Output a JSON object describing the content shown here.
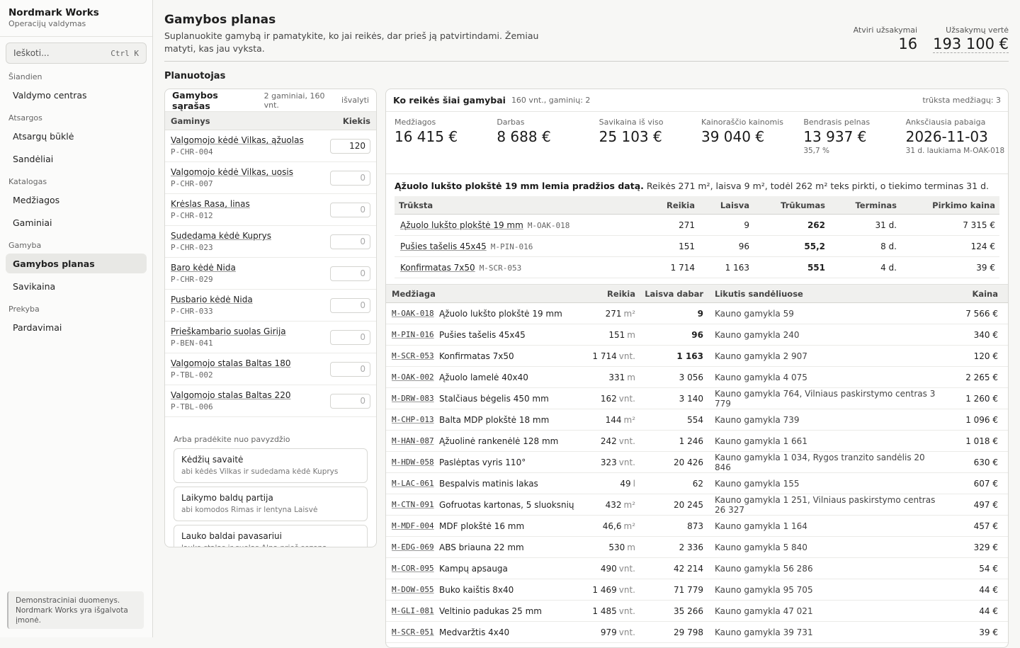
{
  "app": {
    "title": "Nordmark Works",
    "subtitle": "Operacijų valdymas"
  },
  "search": {
    "placeholder": "Ieškoti...",
    "shortcut": "Ctrl K"
  },
  "nav": [
    {
      "section": "Šiandien",
      "items": [
        "Valdymo centras"
      ]
    },
    {
      "section": "Atsargos",
      "items": [
        "Atsargų būklė",
        "Sandėliai"
      ]
    },
    {
      "section": "Katalogas",
      "items": [
        "Medžiagos",
        "Gaminiai"
      ]
    },
    {
      "section": "Gamyba",
      "items": [
        "Gamybos planas",
        "Savikaina"
      ]
    },
    {
      "section": "Prekyba",
      "items": [
        "Pardavimai"
      ]
    }
  ],
  "active_nav": "Gamybos planas",
  "note": "Demonstraciniai duomenys. Nordmark Works yra išgalvota įmonė.",
  "header": {
    "title": "Gamybos planas",
    "subtitle": "Suplanuokite gamybą ir pamatykite, ko jai reikės, dar prieš ją patvirtindami. Žemiau matyti, kas jau vyksta.",
    "stats": [
      {
        "label": "Atviri užsakymai",
        "value": "16"
      },
      {
        "label": "Užsakymų vertė",
        "value": "193 100 €"
      }
    ]
  },
  "section_title": "Planuotojas",
  "list": {
    "title": "Gamybos sąrašas",
    "meta": "2 gaminiai, 160 vnt.",
    "clear": "išvalyti",
    "col_product": "Gaminys",
    "col_qty": "Kiekis",
    "rows": [
      {
        "name": "Valgomojo kėdė Vilkas, ąžuolas",
        "code": "P-CHR-004",
        "qty": "120"
      },
      {
        "name": "Valgomojo kėdė Vilkas, uosis",
        "code": "P-CHR-007",
        "qty": "0"
      },
      {
        "name": "Krėslas Rasa, linas",
        "code": "P-CHR-012",
        "qty": "0"
      },
      {
        "name": "Sudedama kėdė Kuprys",
        "code": "P-CHR-023",
        "qty": "0"
      },
      {
        "name": "Baro kėdė Nida",
        "code": "P-CHR-029",
        "qty": "0"
      },
      {
        "name": "Pusbario kėdė Nida",
        "code": "P-CHR-033",
        "qty": "0"
      },
      {
        "name": "Prieškambario suolas Girija",
        "code": "P-BEN-041",
        "qty": "0"
      },
      {
        "name": "Valgomojo stalas Baltas 180",
        "code": "P-TBL-002",
        "qty": "0"
      },
      {
        "name": "Valgomojo stalas Baltas 220",
        "code": "P-TBL-006",
        "qty": "0"
      }
    ],
    "examples_heading": "Arba pradėkite nuo pavyzdžio",
    "examples": [
      {
        "title": "Kėdžių savaitė",
        "desc": "abi kėdės Vilkas ir sudedama kėdė Kuprys"
      },
      {
        "title": "Laikymo baldų partija",
        "desc": "abi komodos Rimas ir lentyna Laisvė"
      },
      {
        "title": "Lauko baldai pavasariui",
        "desc": "lauko stalas ir suolas Alna prieš sezoną"
      }
    ]
  },
  "need": {
    "title": "Ko reikės šiai gamybai",
    "meta": "160 vnt., gaminių: 2",
    "short": "trūksta medžiagų: 3",
    "kpis": [
      {
        "label": "Medžiagos",
        "value": "16 415 €",
        "sub": ""
      },
      {
        "label": "Darbas",
        "value": "8 688 €",
        "sub": ""
      },
      {
        "label": "Savikaina iš viso",
        "value": "25 103 €",
        "sub": ""
      },
      {
        "label": "Kainoraščio kainomis",
        "value": "39 040 €",
        "sub": ""
      },
      {
        "label": "Bendrasis pelnas",
        "value": "13 937 €",
        "sub": "35,7 %"
      },
      {
        "label": "Anksčiausia pabaiga",
        "value": "2026-11-03",
        "sub": "31 d. laukiama M-OAK-018"
      }
    ],
    "limit_bold": "Ąžuolo lukšto plokštė 19 mm lemia pradžios datą.",
    "limit_text": " Reikės 271 m², laisva 9 m², todėl 262 m² teks pirkti, o tiekimo terminas 31 d.",
    "short_cols": [
      "Trūksta",
      "Reikia",
      "Laisva",
      "Trūkumas",
      "Terminas",
      "Pirkimo kaina"
    ],
    "short_rows": [
      {
        "name": "Ąžuolo lukšto plokštė 19 mm",
        "code": "M-OAK-018",
        "need": "271",
        "free": "9",
        "gap": "262",
        "lead": "31 d.",
        "cost": "7 315 €"
      },
      {
        "name": "Pušies tašelis 45x45",
        "code": "M-PIN-016",
        "need": "151",
        "free": "96",
        "gap": "55,2",
        "lead": "8 d.",
        "cost": "124 €"
      },
      {
        "name": "Konfirmatas 7x50",
        "code": "M-SCR-053",
        "need": "1 714",
        "free": "1 163",
        "gap": "551",
        "lead": "4 d.",
        "cost": "39 €"
      }
    ],
    "mat_cols": [
      "Medžiaga",
      "Reikia",
      "Laisva dabar",
      "Likutis sandėliuose",
      "Kaina"
    ],
    "mat_rows": [
      {
        "code": "M-OAK-018",
        "name": "Ąžuolo lukšto plokštė 19 mm",
        "need": "271",
        "unit": "m²",
        "free": "9",
        "stock": "Kauno gamykla 59",
        "price": "7 566 €",
        "bold": true
      },
      {
        "code": "M-PIN-016",
        "name": "Pušies tašelis 45x45",
        "need": "151",
        "unit": "m",
        "free": "96",
        "stock": "Kauno gamykla 240",
        "price": "340 €",
        "bold": true
      },
      {
        "code": "M-SCR-053",
        "name": "Konfirmatas 7x50",
        "need": "1 714",
        "unit": "vnt.",
        "free": "1 163",
        "stock": "Kauno gamykla 2 907",
        "price": "120 €",
        "bold": true
      },
      {
        "code": "M-OAK-002",
        "name": "Ąžuolo lamelė 40x40",
        "need": "331",
        "unit": "m",
        "free": "3 056",
        "stock": "Kauno gamykla 4 075",
        "price": "2 265 €",
        "bold": false
      },
      {
        "code": "M-DRW-083",
        "name": "Stalčiaus bėgelis 450 mm",
        "need": "162",
        "unit": "vnt.",
        "free": "3 140",
        "stock": "Kauno gamykla 764, Vilniaus paskirstymo centras 3 779",
        "price": "1 260 €",
        "bold": false
      },
      {
        "code": "M-CHP-013",
        "name": "Balta MDP plokštė 18 mm",
        "need": "144",
        "unit": "m²",
        "free": "554",
        "stock": "Kauno gamykla 739",
        "price": "1 096 €",
        "bold": false
      },
      {
        "code": "M-HAN-087",
        "name": "Ąžuolinė rankenėlė 128 mm",
        "need": "242",
        "unit": "vnt.",
        "free": "1 246",
        "stock": "Kauno gamykla 1 661",
        "price": "1 018 €",
        "bold": false
      },
      {
        "code": "M-HDW-058",
        "name": "Paslėptas vyris 110°",
        "need": "323",
        "unit": "vnt.",
        "free": "20 426",
        "stock": "Kauno gamykla 1 034, Rygos tranzito sandėlis 20 846",
        "price": "630 €",
        "bold": false
      },
      {
        "code": "M-LAC-061",
        "name": "Bespalvis matinis lakas",
        "need": "49",
        "unit": "l",
        "free": "62",
        "stock": "Kauno gamykla 155",
        "price": "607 €",
        "bold": false
      },
      {
        "code": "M-CTN-091",
        "name": "Gofruotas kartonas, 5 sluoksnių",
        "need": "432",
        "unit": "m²",
        "free": "20 245",
        "stock": "Kauno gamykla 1 251, Vilniaus paskirstymo centras 26 327",
        "price": "497 €",
        "bold": false
      },
      {
        "code": "M-MDF-004",
        "name": "MDF plokštė 16 mm",
        "need": "46,6",
        "unit": "m²",
        "free": "873",
        "stock": "Kauno gamykla 1 164",
        "price": "457 €",
        "bold": false
      },
      {
        "code": "M-EDG-069",
        "name": "ABS briauna 22 mm",
        "need": "530",
        "unit": "m",
        "free": "2 336",
        "stock": "Kauno gamykla 5 840",
        "price": "329 €",
        "bold": false
      },
      {
        "code": "M-COR-095",
        "name": "Kampų apsauga",
        "need": "490",
        "unit": "vnt.",
        "free": "42 214",
        "stock": "Kauno gamykla 56 286",
        "price": "54 €",
        "bold": false
      },
      {
        "code": "M-DOW-055",
        "name": "Buko kaištis 8x40",
        "need": "1 469",
        "unit": "vnt.",
        "free": "71 779",
        "stock": "Kauno gamykla 95 705",
        "price": "44 €",
        "bold": false
      },
      {
        "code": "M-GLI-081",
        "name": "Veltinio padukas 25 mm",
        "need": "1 485",
        "unit": "vnt.",
        "free": "35 266",
        "stock": "Kauno gamykla 47 021",
        "price": "44 €",
        "bold": false
      },
      {
        "code": "M-SCR-051",
        "name": "Medvaržtis 4x40",
        "need": "979",
        "unit": "vnt.",
        "free": "29 798",
        "stock": "Kauno gamykla 39 731",
        "price": "39 €",
        "bold": false
      }
    ]
  }
}
